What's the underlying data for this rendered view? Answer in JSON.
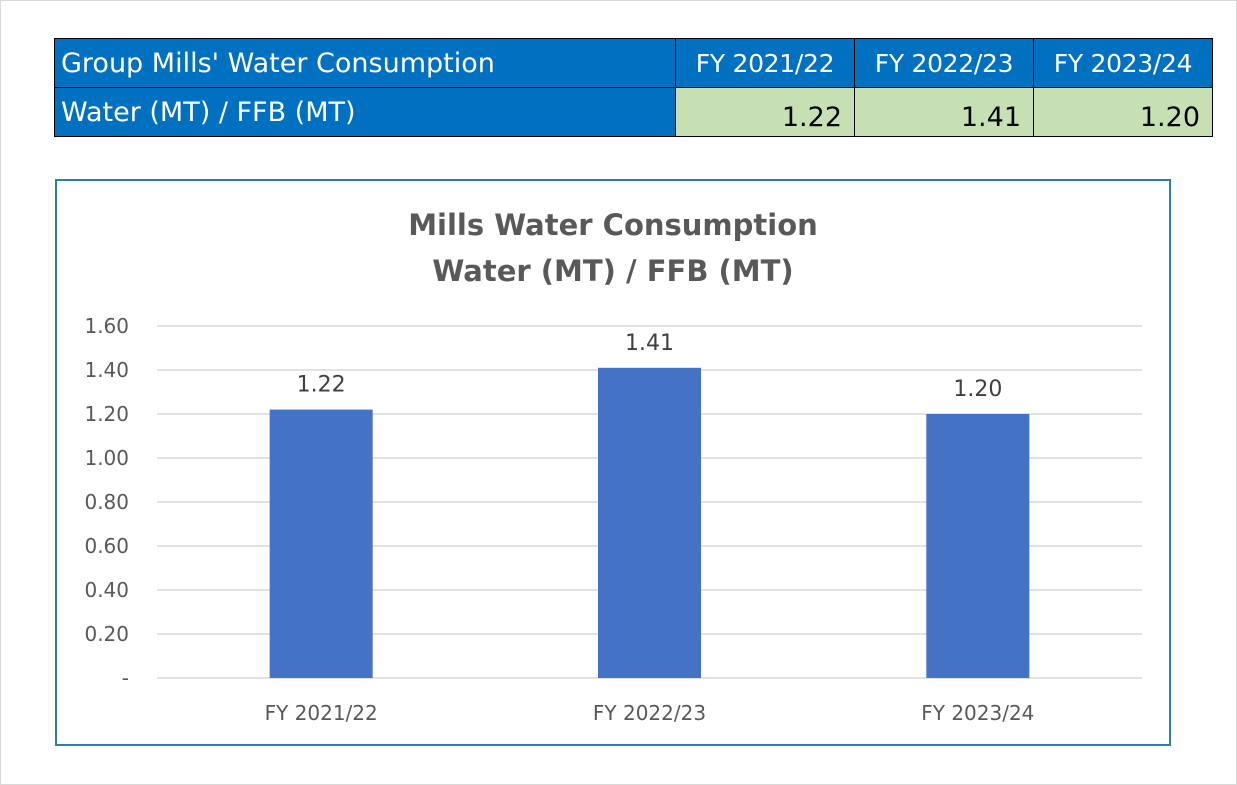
{
  "summary_table": {
    "header": {
      "label": "Group Mills' Water Consumption",
      "years": [
        "FY 2021/22",
        "FY 2022/23",
        "FY 2023/24"
      ]
    },
    "row": {
      "label": "Water (MT) / FFB (MT)",
      "values": [
        "1.22",
        "1.41",
        "1.20"
      ]
    },
    "colors": {
      "header_bg": "#0070c0",
      "header_text": "#ffffff",
      "value_bg": "#c6e0b4"
    }
  },
  "chart_data": {
    "type": "bar",
    "title": [
      "Mills Water Consumption",
      "Water (MT) / FFB (MT)"
    ],
    "categories": [
      "FY 2021/22",
      "FY 2022/23",
      "FY 2023/24"
    ],
    "values": [
      1.22,
      1.41,
      1.2
    ],
    "data_labels": [
      "1.22",
      "1.41",
      "1.20"
    ],
    "y_ticks": [
      {
        "value": 0,
        "label": "-"
      },
      {
        "value": 0.2,
        "label": "0.20"
      },
      {
        "value": 0.4,
        "label": "0.40"
      },
      {
        "value": 0.6,
        "label": "0.60"
      },
      {
        "value": 0.8,
        "label": "0.80"
      },
      {
        "value": 1.0,
        "label": "1.00"
      },
      {
        "value": 1.2,
        "label": "1.20"
      },
      {
        "value": 1.4,
        "label": "1.40"
      },
      {
        "value": 1.6,
        "label": "1.60"
      }
    ],
    "ylim": [
      0,
      1.6
    ],
    "xlabel": "",
    "ylabel": "",
    "grid": true,
    "legend": "none",
    "bar_color": "#4472c4",
    "border_color": "#2e7ea6"
  }
}
